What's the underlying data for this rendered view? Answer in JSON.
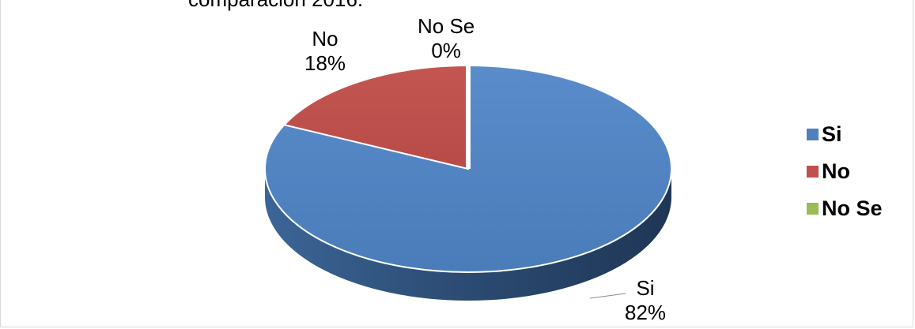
{
  "chart_data": {
    "type": "pie",
    "title": "comparación 2016.",
    "categories": [
      "Si",
      "No",
      "No Se"
    ],
    "values": [
      82,
      18,
      0
    ],
    "unit": "%",
    "colors": [
      "#4f81bd",
      "#c0504d",
      "#9bbb59"
    ],
    "data_labels": [
      {
        "name": "Si",
        "value": "82%"
      },
      {
        "name": "No",
        "value": "18%"
      },
      {
        "name": "No Se",
        "value": "0%"
      }
    ],
    "legend": {
      "position": "right",
      "entries": [
        "Si",
        "No",
        "No Se"
      ]
    },
    "style": "3d"
  }
}
